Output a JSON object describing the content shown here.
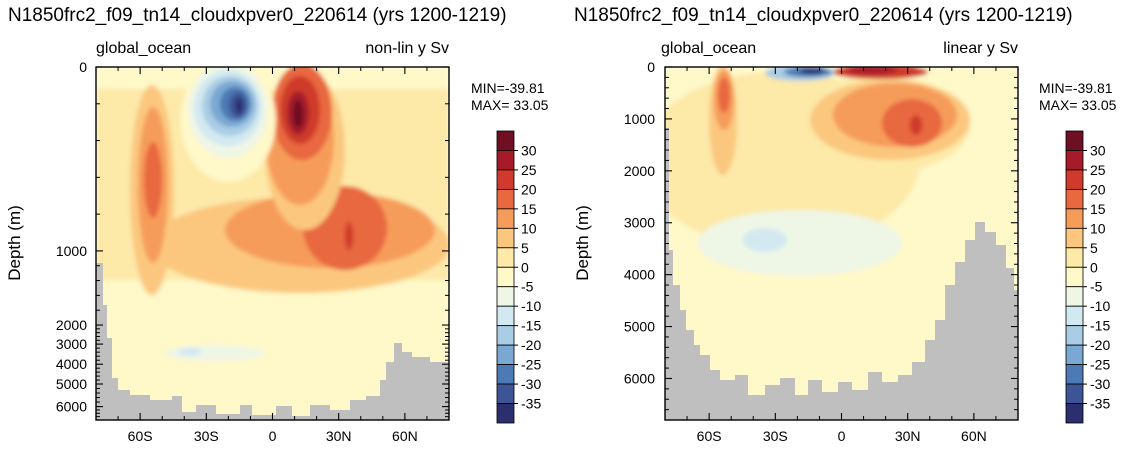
{
  "colors": {
    "land": "#bfbfbf",
    "levels": [
      "#2b2f6e",
      "#3d5596",
      "#4d79b4",
      "#7aa8d2",
      "#a9cde4",
      "#d3e9f1",
      "#eef6e6",
      "#fff8c8",
      "#fde9a8",
      "#fbc77f",
      "#f69c5a",
      "#e8683f",
      "#cf3a2c",
      "#a51b29",
      "#6e0f24"
    ]
  },
  "chart_data": [
    {
      "type": "heatmap",
      "title": "N1850frc2_f09_tn14_cloudxpver0_220614 (yrs 1200-1219)",
      "left_label": "global_ocean",
      "right_label": "non-lin y Sv",
      "ylabel": "Depth (m)",
      "y_scale": "non-linear",
      "xlim": [
        -80,
        80
      ],
      "ylim": [
        6800,
        0
      ],
      "x_ticks": [
        -60,
        -30,
        0,
        30,
        60
      ],
      "x_tick_labels": [
        "60S",
        "30S",
        "0",
        "30N",
        "60N"
      ],
      "y_ticks": [
        0,
        1000,
        2000,
        3000,
        4000,
        5000,
        6000
      ],
      "y_tick_labels": [
        "0",
        "1000",
        "2000",
        "3000",
        "4000",
        "5000",
        "6000"
      ],
      "min_label": "MIN=-39.81",
      "max_label": "MAX= 33.05",
      "min": -39.81,
      "max": 33.05,
      "legend": "right",
      "colorbar_levels": [
        -35,
        -30,
        -25,
        -20,
        -15,
        -10,
        -5,
        0,
        5,
        10,
        15,
        20,
        25,
        30
      ],
      "colorbar_labels": [
        "30",
        "25",
        "20",
        "15",
        "10",
        "5",
        "0",
        "-5",
        "-10",
        "-15",
        "-20",
        "-25",
        "-30",
        "-35"
      ]
    },
    {
      "type": "heatmap",
      "title": "N1850frc2_f09_tn14_cloudxpver0_220614 (yrs 1200-1219)",
      "left_label": "global_ocean",
      "right_label": "linear y Sv",
      "ylabel": "Depth (m)",
      "y_scale": "linear",
      "xlim": [
        -80,
        80
      ],
      "ylim": [
        6800,
        0
      ],
      "x_ticks": [
        -60,
        -30,
        0,
        30,
        60
      ],
      "x_tick_labels": [
        "60S",
        "30S",
        "0",
        "30N",
        "60N"
      ],
      "y_ticks": [
        0,
        1000,
        2000,
        3000,
        4000,
        5000,
        6000
      ],
      "y_tick_labels": [
        "0",
        "1000",
        "2000",
        "3000",
        "4000",
        "5000",
        "6000"
      ],
      "min_label": "MIN=-39.81",
      "max_label": "MAX= 33.05",
      "min": -39.81,
      "max": 33.05,
      "legend": "right",
      "colorbar_levels": [
        -35,
        -30,
        -25,
        -20,
        -15,
        -10,
        -5,
        0,
        5,
        10,
        15,
        20,
        25,
        30
      ],
      "colorbar_labels": [
        "30",
        "25",
        "20",
        "15",
        "10",
        "5",
        "0",
        "-5",
        "-10",
        "-15",
        "-20",
        "-25",
        "-30",
        "-35"
      ]
    }
  ]
}
